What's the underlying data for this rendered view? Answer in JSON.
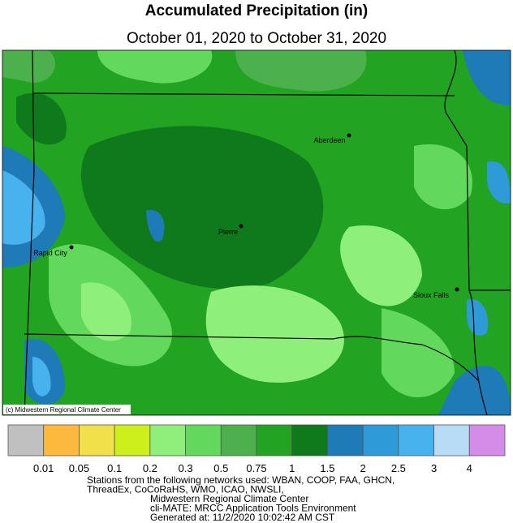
{
  "title": "Accumulated Precipitation (in)",
  "subtitle": "October 01, 2020 to October 31, 2020",
  "cities": [
    {
      "name": "Aberdeen"
    },
    {
      "name": "Pierre"
    },
    {
      "name": "Rapid City"
    },
    {
      "name": "Sioux Falls"
    }
  ],
  "copyright": "(c) Midwestern Regional Climate Center",
  "legend": {
    "colors": [
      "#c0c0c0",
      "#fdb93d",
      "#f2e04a",
      "#cdf01c",
      "#8ef07a",
      "#62d85c",
      "#4cb04c",
      "#22a322",
      "#0f7a1b",
      "#1f7ab8",
      "#2f9ad8",
      "#48b2ee",
      "#b8dcf6",
      "#d58ce8"
    ],
    "labels": [
      "0.01",
      "0.05",
      "0.1",
      "0.2",
      "0.3",
      "0.5",
      "0.75",
      "1",
      "1.5",
      "2",
      "2.5",
      "3",
      "4"
    ]
  },
  "footer": [
    "Stations from the following networks used: WBAN, COOP, FAA, GHCN,",
    "ThreadEx, CoCoRaHS, WMO, ICAO, NWSLI,",
    "Midwestern Regional Climate Center",
    "cli-MATE: MRCC Application Tools Environment",
    "Generated at: 11/2/2020 10:02:42 AM CST"
  ]
}
